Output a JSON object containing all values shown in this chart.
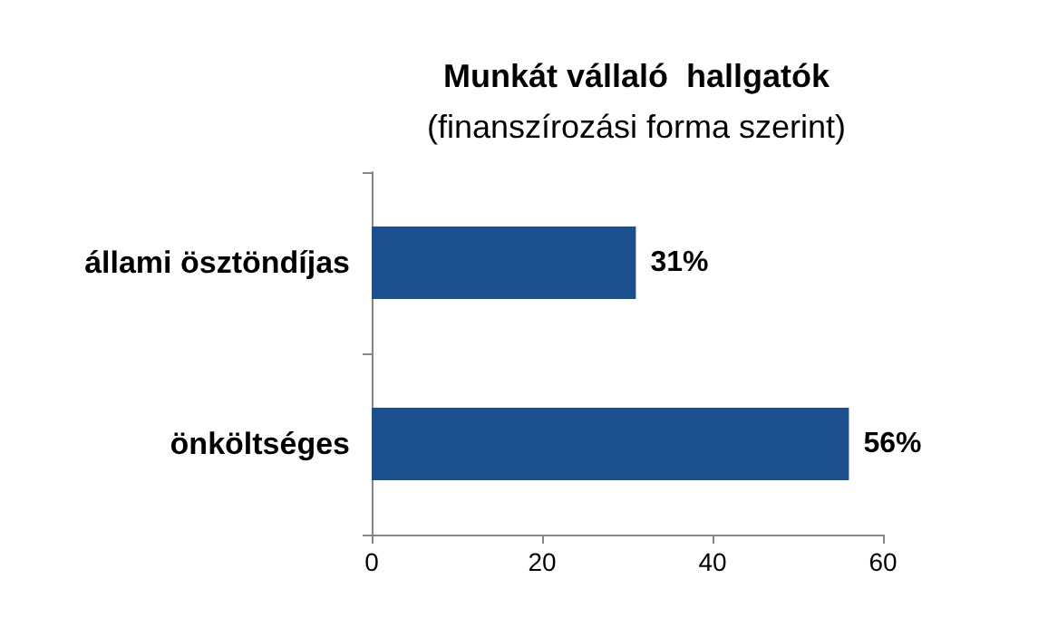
{
  "chart_data": {
    "type": "bar",
    "orientation": "horizontal",
    "title": "Munkát vállaló  hallgatók",
    "subtitle": "(finanszírozási forma szerint)",
    "categories": [
      "állami ösztöndíjas",
      "önköltséges"
    ],
    "values": [
      31,
      56
    ],
    "value_labels": [
      "31%",
      "56%"
    ],
    "color": "#1c4f8e",
    "xlim": [
      0,
      60
    ],
    "xticks": [
      0,
      20,
      40,
      60
    ],
    "grid": false
  }
}
